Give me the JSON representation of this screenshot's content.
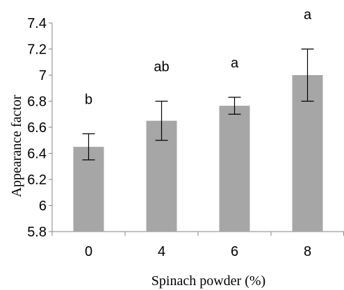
{
  "chart_data": {
    "type": "bar",
    "categories": [
      "0",
      "4",
      "6",
      "8"
    ],
    "values": [
      6.45,
      6.65,
      6.765,
      7.0
    ],
    "error": [
      0.1,
      0.15,
      0.065,
      0.2
    ],
    "significance": [
      "b",
      "ab",
      "a",
      "a"
    ],
    "xlabel": "Spinach powder (%)",
    "ylabel": "Appearance factor",
    "ylim": [
      5.8,
      7.4
    ],
    "yticks": [
      "5.8",
      "6",
      "6.2",
      "6.4",
      "6.6",
      "6.8",
      "7",
      "7.2",
      "7.4"
    ],
    "ytick_values": [
      5.8,
      6.0,
      6.2,
      6.4,
      6.6,
      6.8,
      7.0,
      7.2,
      7.4
    ],
    "grid": false,
    "colors": {
      "bar": "#a6a6a6",
      "axis": "#868686",
      "error": "#000000"
    }
  }
}
